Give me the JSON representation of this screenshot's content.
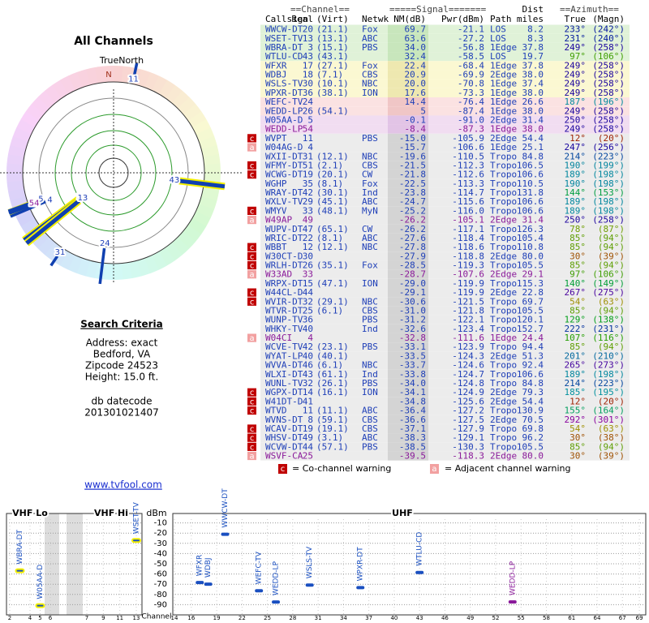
{
  "panel": {
    "title": "All Channels",
    "north": "TrueNorth",
    "n": "N",
    "criteria_title": "Search Criteria",
    "criteria": [
      "Address: exact",
      "Bedford, VA",
      "Zipcode 24523",
      "Height: 15.0 ft."
    ],
    "datecode_label": "db datecode",
    "datecode": "201301021407",
    "link": "www.tvfool.com"
  },
  "table": {
    "groups": {
      "channel": "==Channel==",
      "signal": "=====Signal=======",
      "dist": "Dist",
      "azimuth": "==Azimuth=="
    },
    "headers": {
      "call": "Callsign",
      "real": "Real",
      "virt": "(Virt)",
      "net": "Netwk",
      "nm": "NM(dB)",
      "pwr": "Pwr(dBm)",
      "path": "Path",
      "dist": "miles",
      "az": "True",
      "mag": "(Magn)"
    },
    "rows": [
      {
        "call": "WWCW-DT",
        "real": "20",
        "virt": "(21.1)",
        "net": "Fox",
        "nm": "69.7",
        "pwr": "-21.1",
        "path": "LOS",
        "dist": "8.2",
        "az": "233°",
        "mag": "(242°)"
      },
      {
        "call": "WSET-TV",
        "real": "13",
        "virt": "(13.1)",
        "net": "ABC",
        "nm": "63.6",
        "pwr": "-27.2",
        "path": "LOS",
        "dist": "8.3",
        "az": "231°",
        "mag": "(240°)"
      },
      {
        "call": "WBRA-DT",
        "real": "3",
        "virt": "(15.1)",
        "net": "PBS",
        "nm": "34.0",
        "pwr": "-56.8",
        "path": "1Edge",
        "dist": "37.8",
        "az": "249°",
        "mag": "(258°)"
      },
      {
        "call": "WTLU-CD",
        "real": "43",
        "virt": "(43.1)",
        "nm": "32.4",
        "pwr": "-58.5",
        "path": "LOS",
        "dist": "19.7",
        "az": "97°",
        "mag": "(106°)"
      },
      {
        "call": "WFXR",
        "real": "17",
        "virt": "(27.1)",
        "net": "Fox",
        "nm": "22.4",
        "pwr": "-68.4",
        "path": "1Edge",
        "dist": "37.8",
        "az": "249°",
        "mag": "(258°)"
      },
      {
        "call": "WDBJ",
        "real": "18",
        "virt": "(7.1)",
        "net": "CBS",
        "nm": "20.9",
        "pwr": "-69.9",
        "path": "2Edge",
        "dist": "38.0",
        "az": "249°",
        "mag": "(258°)"
      },
      {
        "call": "WSLS-TV",
        "real": "30",
        "virt": "(10.1)",
        "net": "NBC",
        "nm": "20.0",
        "pwr": "-70.8",
        "path": "1Edge",
        "dist": "37.4",
        "az": "249°",
        "mag": "(258°)"
      },
      {
        "call": "WPXR-DT",
        "real": "36",
        "virt": "(38.1)",
        "net": "ION",
        "nm": "17.6",
        "pwr": "-73.3",
        "path": "1Edge",
        "dist": "38.0",
        "az": "249°",
        "mag": "(258°)"
      },
      {
        "call": "WEFC-TV",
        "real": "24",
        "nm": "14.4",
        "pwr": "-76.4",
        "path": "1Edge",
        "dist": "26.6",
        "az": "187°",
        "mag": "(196°)"
      },
      {
        "call": "WEDD-LP",
        "real": "26",
        "virt": "(54.1)",
        "nm": "5",
        "pwr": "-87.4",
        "path": "1Edge",
        "dist": "38.0",
        "az": "249°",
        "mag": "(258°)"
      },
      {
        "call": "W05AA-D",
        "real": "5",
        "nm": "-0.1",
        "pwr": "-91.0",
        "path": "2Edge",
        "dist": "31.4",
        "az": "250°",
        "mag": "(258°)"
      },
      {
        "call": "WEDD-LP",
        "real": "54",
        "nm": "-8.4",
        "pwr": "-87.3",
        "path": "1Edge",
        "dist": "38.0",
        "az": "249°",
        "mag": "(258°)",
        "color": "#8a1a9a"
      },
      {
        "call": "WVPT",
        "real": "11",
        "net": "PBS",
        "nm": "-15.0",
        "pwr": "-105.9",
        "path": "2Edge",
        "dist": "54.4",
        "az": "12°",
        "mag": "(20°)",
        "warn": "c"
      },
      {
        "call": "W04AG-D",
        "real": "4",
        "nm": "-15.7",
        "pwr": "-106.6",
        "path": "1Edge",
        "dist": "25.1",
        "az": "247°",
        "mag": "(256°)",
        "warn": "a"
      },
      {
        "call": "WXII-DT",
        "real": "31",
        "virt": "(12.1)",
        "net": "NBC",
        "nm": "-19.6",
        "pwr": "-110.5",
        "path": "Tropo",
        "dist": "84.8",
        "az": "214°",
        "mag": "(223°)"
      },
      {
        "call": "WFMY-DT",
        "real": "51",
        "virt": "(2.1)",
        "net": "CBS",
        "nm": "-21.5",
        "pwr": "-112.3",
        "path": "Tropo",
        "dist": "106.5",
        "az": "190°",
        "mag": "(199°)",
        "warn": "c"
      },
      {
        "call": "WCWG-DT",
        "real": "19",
        "virt": "(20.1)",
        "net": "CW",
        "nm": "-21.8",
        "pwr": "-112.6",
        "path": "Tropo",
        "dist": "106.6",
        "az": "189°",
        "mag": "(198°)",
        "warn": "c"
      },
      {
        "call": "WGHP",
        "real": "35",
        "virt": "(8.1)",
        "net": "Fox",
        "nm": "-22.5",
        "pwr": "-113.3",
        "path": "Tropo",
        "dist": "110.5",
        "az": "190°",
        "mag": "(198°)"
      },
      {
        "call": "WRAY-DT",
        "real": "42",
        "virt": "(30.1)",
        "net": "Ind",
        "nm": "-23.8",
        "pwr": "-114.7",
        "path": "Tropo",
        "dist": "131.8",
        "az": "144°",
        "mag": "(153°)"
      },
      {
        "call": "WXLV-TV",
        "real": "29",
        "virt": "(45.1)",
        "net": "ABC",
        "nm": "-24.7",
        "pwr": "-115.6",
        "path": "Tropo",
        "dist": "106.6",
        "az": "189°",
        "mag": "(198°)"
      },
      {
        "call": "WMYV",
        "real": "33",
        "virt": "(48.1)",
        "net": "MyN",
        "nm": "-25.2",
        "pwr": "-116.0",
        "path": "Tropo",
        "dist": "106.6",
        "az": "189°",
        "mag": "(198°)",
        "warn": "c"
      },
      {
        "call": "W49AP",
        "real": "49",
        "nm": "-26.2",
        "pwr": "-105.1",
        "path": "2Edge",
        "dist": "31.4",
        "az": "250°",
        "mag": "(258°)",
        "color": "#8a1a9a",
        "warn": "a"
      },
      {
        "call": "WUPV-DT",
        "real": "47",
        "virt": "(65.1)",
        "net": "CW",
        "nm": "-26.2",
        "pwr": "-117.1",
        "path": "Tropo",
        "dist": "126.3",
        "az": "78°",
        "mag": "(87°)"
      },
      {
        "call": "WRIC-DT",
        "real": "22",
        "virt": "(8.1)",
        "net": "ABC",
        "nm": "-27.6",
        "pwr": "-118.4",
        "path": "Tropo",
        "dist": "105.4",
        "az": "85°",
        "mag": "(94°)"
      },
      {
        "call": "WBBT",
        "real": "12",
        "virt": "(12.1)",
        "net": "NBC",
        "nm": "-27.8",
        "pwr": "-118.6",
        "path": "Tropo",
        "dist": "110.8",
        "az": "85°",
        "mag": "(94°)",
        "warn": "c"
      },
      {
        "call": "W30CT-D",
        "real": "30",
        "nm": "-27.9",
        "pwr": "-118.8",
        "path": "2Edge",
        "dist": "80.0",
        "az": "30°",
        "mag": "(39°)",
        "warn": "c"
      },
      {
        "call": "WRLH-DT",
        "real": "26",
        "virt": "(35.1)",
        "net": "Fox",
        "nm": "-28.5",
        "pwr": "-119.3",
        "path": "Tropo",
        "dist": "105.5",
        "az": "85°",
        "mag": "(94°)",
        "warn": "c"
      },
      {
        "call": "W33AD",
        "real": "33",
        "nm": "-28.7",
        "pwr": "-107.6",
        "path": "2Edge",
        "dist": "29.1",
        "az": "97°",
        "mag": "(106°)",
        "color": "#8a1a9a",
        "warn": "a"
      },
      {
        "call": "WRPX-DT",
        "real": "15",
        "virt": "(47.1)",
        "net": "ION",
        "nm": "-29.0",
        "pwr": "-119.9",
        "path": "Tropo",
        "dist": "115.3",
        "az": "140°",
        "mag": "(149°)"
      },
      {
        "call": "W44CL-D",
        "real": "44",
        "nm": "-29.1",
        "pwr": "-119.9",
        "path": "2Edge",
        "dist": "22.8",
        "az": "267°",
        "mag": "(275°)",
        "warn": "c"
      },
      {
        "call": "WVIR-DT",
        "real": "32",
        "virt": "(29.1)",
        "net": "NBC",
        "nm": "-30.6",
        "pwr": "-121.5",
        "path": "Tropo",
        "dist": "69.7",
        "az": "54°",
        "mag": "(63°)",
        "warn": "c"
      },
      {
        "call": "WTVR-DT",
        "real": "25",
        "virt": "(6.1)",
        "net": "CBS",
        "nm": "-31.0",
        "pwr": "-121.8",
        "path": "Tropo",
        "dist": "105.5",
        "az": "85°",
        "mag": "(94°)"
      },
      {
        "call": "WUNP-TV",
        "real": "36",
        "net": "PBS",
        "nm": "-31.2",
        "pwr": "-122.1",
        "path": "Tropo",
        "dist": "120.1",
        "az": "129°",
        "mag": "(138°)"
      },
      {
        "call": "WHKY-TV",
        "real": "40",
        "net": "Ind",
        "nm": "-32.6",
        "pwr": "-123.4",
        "path": "Tropo",
        "dist": "152.7",
        "az": "222°",
        "mag": "(231°)"
      },
      {
        "call": "W04CI",
        "real": "4",
        "nm": "-32.8",
        "pwr": "-111.6",
        "path": "1Edge",
        "dist": "24.4",
        "az": "107°",
        "mag": "(116°)",
        "color": "#8a1a9a",
        "warn": "a"
      },
      {
        "call": "WCVE-TV",
        "real": "42",
        "virt": "(23.1)",
        "net": "PBS",
        "nm": "-33.1",
        "pwr": "-123.9",
        "path": "Tropo",
        "dist": "94.4",
        "az": "85°",
        "mag": "(94°)"
      },
      {
        "call": "WYAT-LP",
        "real": "40",
        "virt": "(40.1)",
        "nm": "-33.5",
        "pwr": "-124.3",
        "path": "2Edge",
        "dist": "51.3",
        "az": "201°",
        "mag": "(210°)"
      },
      {
        "call": "WVVA-DT",
        "real": "46",
        "virt": "(6.1)",
        "net": "NBC",
        "nm": "-33.7",
        "pwr": "-124.6",
        "path": "Tropo",
        "dist": "92.4",
        "az": "265°",
        "mag": "(273°)"
      },
      {
        "call": "WLXI-DT",
        "real": "43",
        "virt": "(61.1)",
        "net": "Ind",
        "nm": "-33.8",
        "pwr": "-124.7",
        "path": "Tropo",
        "dist": "106.6",
        "az": "189°",
        "mag": "(198°)"
      },
      {
        "call": "WUNL-TV",
        "real": "32",
        "virt": "(26.1)",
        "net": "PBS",
        "nm": "-34.0",
        "pwr": "-124.8",
        "path": "Tropo",
        "dist": "84.8",
        "az": "214°",
        "mag": "(223°)"
      },
      {
        "call": "WGPX-DT",
        "real": "14",
        "virt": "(16.1)",
        "net": "ION",
        "nm": "-34.1",
        "pwr": "-124.9",
        "path": "2Edge",
        "dist": "79.3",
        "az": "185°",
        "mag": "(195°)",
        "warn": "c"
      },
      {
        "call": "W41DT-D",
        "real": "41",
        "nm": "-34.8",
        "pwr": "-125.6",
        "path": "2Edge",
        "dist": "54.4",
        "az": "12°",
        "mag": "(20°)",
        "warn": "c"
      },
      {
        "call": "WTVD",
        "real": "11",
        "virt": "(11.1)",
        "net": "ABC",
        "nm": "-36.4",
        "pwr": "-127.2",
        "path": "Tropo",
        "dist": "130.9",
        "az": "155°",
        "mag": "(164°)",
        "warn": "c"
      },
      {
        "call": "WVNS-DT",
        "real": "8",
        "virt": "(59.1)",
        "net": "CBS",
        "nm": "-36.6",
        "pwr": "-127.5",
        "path": "2Edge",
        "dist": "70.5",
        "az": "292°",
        "mag": "(301°)"
      },
      {
        "call": "WCAV-DT",
        "real": "19",
        "virt": "(19.1)",
        "net": "CBS",
        "nm": "-37.1",
        "pwr": "-127.9",
        "path": "Tropo",
        "dist": "69.8",
        "az": "54°",
        "mag": "(63°)",
        "warn": "c"
      },
      {
        "call": "WHSV-DT",
        "real": "49",
        "virt": "(3.1)",
        "net": "ABC",
        "nm": "-38.3",
        "pwr": "-129.1",
        "path": "Tropo",
        "dist": "96.2",
        "az": "30°",
        "mag": "(38°)",
        "warn": "c"
      },
      {
        "call": "WCVW-DT",
        "real": "44",
        "virt": "(57.1)",
        "net": "PBS",
        "nm": "-38.5",
        "pwr": "-130.3",
        "path": "Tropo",
        "dist": "105.5",
        "az": "85°",
        "mag": "(94°)",
        "warn": "c"
      },
      {
        "call": "WSVF-CA",
        "real": "25",
        "nm": "-39.5",
        "pwr": "-118.3",
        "path": "2Edge",
        "dist": "80.0",
        "az": "30°",
        "mag": "(39°)",
        "color": "#8a1a9a",
        "warn": "a"
      }
    ]
  },
  "legend": {
    "co": {
      "icon": "c",
      "text": "= Co-channel warning"
    },
    "adj": {
      "icon": "a",
      "text": "= Adjacent channel warning"
    }
  },
  "spectrum": {
    "y_label": "dBm",
    "x_label": "Channel",
    "ylim": [
      -100,
      0
    ],
    "yticks": [
      -10,
      -20,
      -30,
      -40,
      -50,
      -60,
      -70,
      -80,
      -90
    ],
    "bands": [
      {
        "label": "VHF Lo",
        "xticks": [
          2,
          4,
          5,
          6
        ]
      },
      {
        "label": "VHF Hi",
        "xticks": [
          7,
          9,
          11,
          13
        ]
      },
      {
        "label": "UHF",
        "xticks": [
          14,
          16,
          19,
          22,
          25,
          28,
          31,
          34,
          37,
          40,
          43,
          46,
          49,
          52,
          55,
          58,
          61,
          64,
          67,
          69
        ]
      }
    ]
  }
}
